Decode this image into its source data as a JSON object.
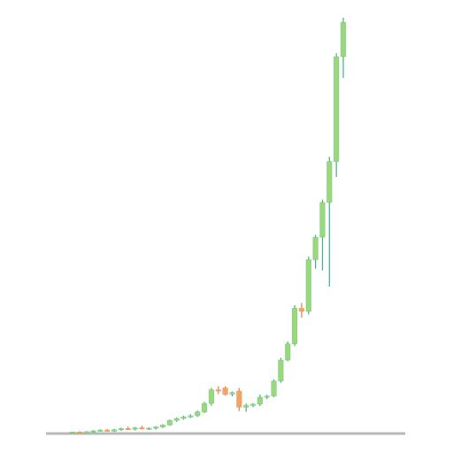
{
  "chart_data": {
    "type": "candlestick",
    "title": "",
    "xlabel": "",
    "ylabel": "",
    "grid": false,
    "legend": "none",
    "ylim": [
      0,
      100
    ],
    "colors": {
      "up": "#9ad87a",
      "up_wick": "#3fb37f",
      "down": "#f4a460",
      "down_wick": "#d9824a",
      "baseline": "#b8b8b8"
    },
    "candles": [
      {
        "o": 0.2,
        "h": 0.5,
        "l": 0.1,
        "c": 0.4
      },
      {
        "o": 0.4,
        "h": 0.6,
        "l": 0.2,
        "c": 0.3
      },
      {
        "o": 0.3,
        "h": 0.6,
        "l": 0.2,
        "c": 0.5
      },
      {
        "o": 0.5,
        "h": 0.9,
        "l": 0.3,
        "c": 0.7
      },
      {
        "o": 0.7,
        "h": 1.1,
        "l": 0.5,
        "c": 0.9
      },
      {
        "o": 0.9,
        "h": 1.2,
        "l": 0.5,
        "c": 0.6
      },
      {
        "o": 0.6,
        "h": 1.2,
        "l": 0.4,
        "c": 1.0
      },
      {
        "o": 1.0,
        "h": 1.5,
        "l": 0.7,
        "c": 1.3
      },
      {
        "o": 1.3,
        "h": 1.8,
        "l": 1.0,
        "c": 1.1
      },
      {
        "o": 1.1,
        "h": 1.7,
        "l": 0.8,
        "c": 1.5
      },
      {
        "o": 1.5,
        "h": 2.0,
        "l": 1.1,
        "c": 1.2
      },
      {
        "o": 1.2,
        "h": 1.6,
        "l": 0.9,
        "c": 1.4
      },
      {
        "o": 1.4,
        "h": 1.9,
        "l": 1.0,
        "c": 1.7
      },
      {
        "o": 1.7,
        "h": 2.4,
        "l": 1.4,
        "c": 2.2
      },
      {
        "o": 2.2,
        "h": 3.6,
        "l": 2.0,
        "c": 3.4
      },
      {
        "o": 3.4,
        "h": 4.2,
        "l": 3.0,
        "c": 3.9
      },
      {
        "o": 3.9,
        "h": 4.6,
        "l": 3.6,
        "c": 4.3
      },
      {
        "o": 4.3,
        "h": 5.0,
        "l": 4.0,
        "c": 4.6
      },
      {
        "o": 4.6,
        "h": 6.0,
        "l": 4.3,
        "c": 5.6
      },
      {
        "o": 5.6,
        "h": 8.2,
        "l": 5.3,
        "c": 7.8
      },
      {
        "o": 7.8,
        "h": 11.8,
        "l": 7.2,
        "c": 11.3
      },
      {
        "o": 11.3,
        "h": 12.2,
        "l": 10.2,
        "c": 11.0
      },
      {
        "o": 11.8,
        "h": 12.2,
        "l": 9.8,
        "c": 10.1
      },
      {
        "o": 10.2,
        "h": 10.9,
        "l": 9.6,
        "c": 10.6
      },
      {
        "o": 11.0,
        "h": 11.8,
        "l": 5.8,
        "c": 6.8
      },
      {
        "o": 6.8,
        "h": 7.8,
        "l": 5.6,
        "c": 7.3
      },
      {
        "o": 7.3,
        "h": 7.9,
        "l": 6.8,
        "c": 7.6
      },
      {
        "o": 7.6,
        "h": 10.1,
        "l": 7.1,
        "c": 9.4
      },
      {
        "o": 9.4,
        "h": 10.0,
        "l": 8.9,
        "c": 9.7
      },
      {
        "o": 9.7,
        "h": 14.0,
        "l": 9.4,
        "c": 13.6
      },
      {
        "o": 13.6,
        "h": 19.6,
        "l": 13.1,
        "c": 19.0
      },
      {
        "o": 19.0,
        "h": 23.8,
        "l": 18.7,
        "c": 23.2
      },
      {
        "o": 23.2,
        "h": 33.2,
        "l": 22.6,
        "c": 32.4
      },
      {
        "o": 32.4,
        "h": 33.8,
        "l": 30.0,
        "c": 31.6
      },
      {
        "o": 31.6,
        "h": 45.8,
        "l": 30.8,
        "c": 45.0
      },
      {
        "o": 45.0,
        "h": 51.4,
        "l": 42.7,
        "c": 50.8
      },
      {
        "o": 50.8,
        "h": 60.5,
        "l": 42.2,
        "c": 59.8
      },
      {
        "o": 59.8,
        "h": 71.6,
        "l": 38.0,
        "c": 70.4
      },
      {
        "o": 70.4,
        "h": 98.4,
        "l": 66.4,
        "c": 97.5
      },
      {
        "o": 97.5,
        "h": 107.6,
        "l": 92.0,
        "c": 106.4
      }
    ]
  }
}
